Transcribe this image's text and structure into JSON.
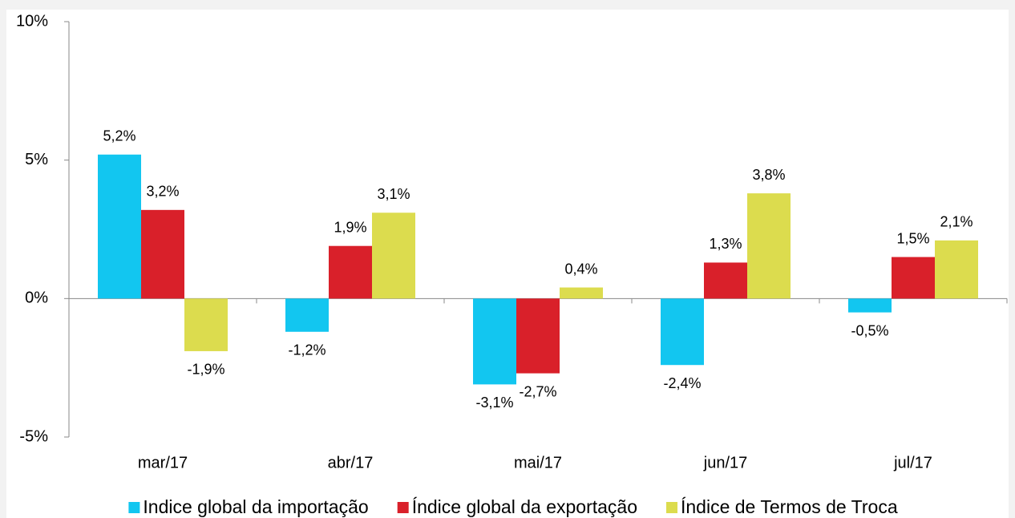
{
  "chart_data": {
    "type": "bar",
    "categories": [
      "mar/17",
      "abr/17",
      "mai/17",
      "jun/17",
      "jul/17"
    ],
    "series": [
      {
        "name": "Indice global da importação",
        "color": "#12c6f0",
        "values": [
          5.2,
          -1.2,
          -3.1,
          -2.4,
          -0.5
        ],
        "value_labels": [
          "5,2%",
          "-1,2%",
          "-3,1%",
          "-2,4%",
          "-0,5%"
        ]
      },
      {
        "name": "Índice global da exportação",
        "color": "#d9202a",
        "values": [
          3.2,
          1.9,
          -2.7,
          1.3,
          1.5
        ],
        "value_labels": [
          "3,2%",
          "1,9%",
          "-2,7%",
          "1,3%",
          "1,5%"
        ]
      },
      {
        "name": "Índice de Termos de Troca",
        "color": "#dcdc4e",
        "values": [
          -1.9,
          3.1,
          0.4,
          3.8,
          2.1
        ],
        "value_labels": [
          "-1,9%",
          "3,1%",
          "0,4%",
          "3,8%",
          "2,1%"
        ]
      }
    ],
    "ylim": [
      -5,
      10
    ],
    "yticks": [
      {
        "value": -5,
        "label": "-5%"
      },
      {
        "value": 0,
        "label": "0%"
      },
      {
        "value": 5,
        "label": "5%"
      },
      {
        "value": 10,
        "label": "10%"
      }
    ],
    "legend": "bottom"
  }
}
